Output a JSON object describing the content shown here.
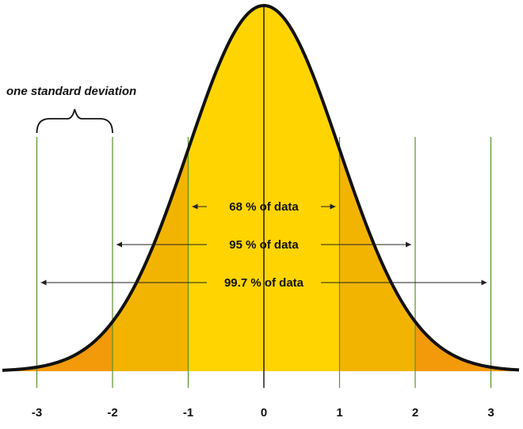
{
  "annotation": {
    "text": "one standard deviation"
  },
  "bands": [
    {
      "label": "68 % of data",
      "from": -1,
      "to": 1
    },
    {
      "label": "95 % of data",
      "from": -2,
      "to": 2
    },
    {
      "label": "99.7 % of data",
      "from": -3,
      "to": 3
    }
  ],
  "ticks": [
    {
      "value": -3,
      "label": "-3"
    },
    {
      "value": -2,
      "label": "-2"
    },
    {
      "value": -1,
      "label": "-1"
    },
    {
      "value": 0,
      "label": "0"
    },
    {
      "value": 1,
      "label": "1"
    },
    {
      "value": 2,
      "label": "2"
    },
    {
      "value": 3,
      "label": "3"
    }
  ],
  "colors": {
    "inner": "#FFD400",
    "middle": "#F2B400",
    "outer": "#F29A0A",
    "curve": "#111111",
    "sd_lines": "#5a8f2e",
    "arrows": "#222222",
    "text": "#111111"
  }
}
